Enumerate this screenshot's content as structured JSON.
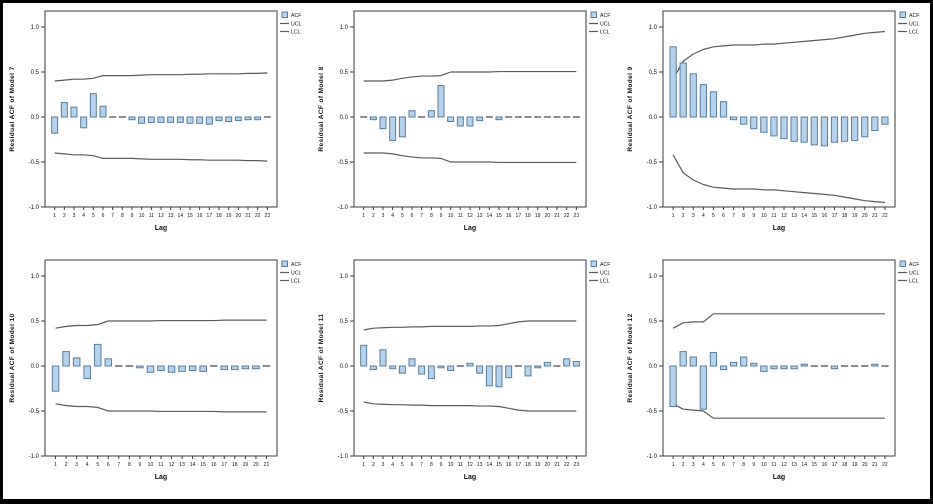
{
  "page": {
    "background": "#ffffff",
    "outer_border_color": "#000000"
  },
  "colors": {
    "bar_fill": "#b5d2ec",
    "bar_stroke": "#5a7d9c",
    "zero_dash": "#3f3f3f",
    "limit_line": "#5a5a5a",
    "frame_stroke": "#3a3a3a",
    "text": "#111111"
  },
  "legend": {
    "acf_label": "ACF",
    "ucl_label": "UCL",
    "lcl_label": "LCL"
  },
  "axis": {
    "x_label": "Lag",
    "y_tick_labels": [
      "1.0",
      "0.5",
      "0.0",
      "-0.5",
      "-1.0"
    ],
    "y_tick_values": [
      1.0,
      0.5,
      0.0,
      -0.5,
      -1.0
    ],
    "ylim": [
      -1.0,
      1.0
    ]
  },
  "chart_data": [
    {
      "type": "bar",
      "ylabel": "Residual ACF of Model 7",
      "xlabel": "Lag",
      "legend_entries": [
        "ACF",
        "UCL",
        "LCL"
      ],
      "ylim": [
        -1.0,
        1.0
      ],
      "lags": [
        1,
        2,
        3,
        4,
        5,
        6,
        7,
        8,
        9,
        10,
        11,
        12,
        13,
        14,
        15,
        16,
        17,
        18,
        19,
        20,
        21,
        22,
        23
      ],
      "acf": [
        -0.18,
        0.16,
        0.11,
        -0.12,
        0.26,
        0.12,
        -0.01,
        -0.01,
        -0.03,
        -0.07,
        -0.06,
        -0.06,
        -0.06,
        -0.06,
        -0.07,
        -0.07,
        -0.08,
        -0.04,
        -0.05,
        -0.04,
        -0.03,
        -0.03,
        -0.01
      ],
      "ucl": [
        0.4,
        0.41,
        0.42,
        0.42,
        0.43,
        0.46,
        0.46,
        0.46,
        0.46,
        0.465,
        0.47,
        0.47,
        0.47,
        0.47,
        0.475,
        0.475,
        0.48,
        0.48,
        0.48,
        0.48,
        0.485,
        0.485,
        0.49
      ],
      "lcl": [
        -0.4,
        -0.41,
        -0.42,
        -0.42,
        -0.43,
        -0.46,
        -0.46,
        -0.46,
        -0.46,
        -0.465,
        -0.47,
        -0.47,
        -0.47,
        -0.47,
        -0.475,
        -0.475,
        -0.48,
        -0.48,
        -0.48,
        -0.48,
        -0.485,
        -0.485,
        -0.49
      ]
    },
    {
      "type": "bar",
      "ylabel": "Residual ACF of Model 8",
      "xlabel": "Lag",
      "legend_entries": [
        "ACF",
        "UCL",
        "LCL"
      ],
      "ylim": [
        -1.0,
        1.0
      ],
      "lags": [
        1,
        2,
        3,
        4,
        5,
        6,
        7,
        8,
        9,
        10,
        11,
        12,
        13,
        14,
        15,
        16,
        17,
        18,
        19,
        20,
        21,
        22,
        23
      ],
      "acf": [
        -0.01,
        -0.03,
        -0.13,
        -0.26,
        -0.22,
        0.07,
        0.01,
        0.07,
        0.35,
        -0.05,
        -0.1,
        -0.1,
        -0.04,
        -0.01,
        -0.03,
        -0.01,
        -0.01,
        0.01,
        -0.01,
        -0.01,
        -0.01,
        -0.01,
        -0.01
      ],
      "ucl": [
        0.4,
        0.4,
        0.4,
        0.41,
        0.43,
        0.445,
        0.455,
        0.455,
        0.46,
        0.5,
        0.5,
        0.5,
        0.5,
        0.5,
        0.505,
        0.505,
        0.505,
        0.505,
        0.505,
        0.505,
        0.505,
        0.505,
        0.505
      ],
      "lcl": [
        -0.4,
        -0.4,
        -0.4,
        -0.41,
        -0.43,
        -0.445,
        -0.455,
        -0.455,
        -0.46,
        -0.5,
        -0.5,
        -0.5,
        -0.5,
        -0.5,
        -0.505,
        -0.505,
        -0.505,
        -0.505,
        -0.505,
        -0.505,
        -0.505,
        -0.505,
        -0.505
      ]
    },
    {
      "type": "bar",
      "ylabel": "Residual ACF of Model 9",
      "xlabel": "Lag",
      "legend_entries": [
        "ACF",
        "UCL",
        "LCL"
      ],
      "ylim": [
        -1.0,
        1.0
      ],
      "lags": [
        1,
        2,
        3,
        4,
        5,
        6,
        7,
        8,
        9,
        10,
        11,
        12,
        13,
        14,
        15,
        16,
        17,
        18,
        19,
        20,
        21,
        22
      ],
      "acf": [
        0.78,
        0.6,
        0.48,
        0.36,
        0.28,
        0.17,
        -0.03,
        -0.08,
        -0.13,
        -0.17,
        -0.21,
        -0.24,
        -0.27,
        -0.28,
        -0.31,
        -0.32,
        -0.28,
        -0.27,
        -0.26,
        -0.22,
        -0.15,
        -0.08
      ],
      "ucl": [
        0.42,
        0.62,
        0.7,
        0.75,
        0.78,
        0.79,
        0.8,
        0.8,
        0.8,
        0.81,
        0.81,
        0.82,
        0.83,
        0.84,
        0.85,
        0.86,
        0.87,
        0.89,
        0.91,
        0.93,
        0.94,
        0.95
      ],
      "lcl": [
        -0.42,
        -0.62,
        -0.7,
        -0.75,
        -0.78,
        -0.79,
        -0.8,
        -0.8,
        -0.8,
        -0.81,
        -0.81,
        -0.82,
        -0.83,
        -0.84,
        -0.85,
        -0.86,
        -0.87,
        -0.89,
        -0.91,
        -0.93,
        -0.94,
        -0.95
      ]
    },
    {
      "type": "bar",
      "ylabel": "Residual ACF of Model 10",
      "xlabel": "Lag",
      "legend_entries": [
        "ACF",
        "UCL",
        "LCL"
      ],
      "ylim": [
        -1.0,
        1.0
      ],
      "lags": [
        1,
        2,
        3,
        4,
        5,
        6,
        7,
        8,
        9,
        10,
        11,
        12,
        13,
        14,
        15,
        16,
        17,
        18,
        19,
        20,
        21
      ],
      "acf": [
        -0.28,
        0.16,
        0.09,
        -0.14,
        0.24,
        0.08,
        -0.01,
        -0.01,
        -0.02,
        -0.07,
        -0.05,
        -0.07,
        -0.06,
        -0.05,
        -0.06,
        -0.01,
        -0.04,
        -0.04,
        -0.03,
        -0.03,
        -0.01
      ],
      "ucl": [
        0.42,
        0.44,
        0.45,
        0.45,
        0.46,
        0.5,
        0.5,
        0.5,
        0.5,
        0.5,
        0.505,
        0.505,
        0.505,
        0.505,
        0.505,
        0.505,
        0.51,
        0.51,
        0.51,
        0.51,
        0.51
      ],
      "lcl": [
        -0.42,
        -0.44,
        -0.45,
        -0.45,
        -0.46,
        -0.5,
        -0.5,
        -0.5,
        -0.5,
        -0.5,
        -0.505,
        -0.505,
        -0.505,
        -0.505,
        -0.505,
        -0.505,
        -0.51,
        -0.51,
        -0.51,
        -0.51,
        -0.51
      ]
    },
    {
      "type": "bar",
      "ylabel": "Residual ACF of Model 11",
      "xlabel": "Lag",
      "legend_entries": [
        "ACF",
        "UCL",
        "LCL"
      ],
      "ylim": [
        -1.0,
        1.0
      ],
      "lags": [
        1,
        2,
        3,
        4,
        5,
        6,
        7,
        8,
        9,
        10,
        11,
        12,
        13,
        14,
        15,
        16,
        17,
        18,
        19,
        20,
        21,
        22,
        23
      ],
      "acf": [
        0.23,
        -0.04,
        0.18,
        -0.03,
        -0.08,
        0.08,
        -0.09,
        -0.14,
        -0.02,
        -0.05,
        -0.01,
        0.03,
        -0.08,
        -0.22,
        -0.23,
        -0.13,
        0.01,
        -0.11,
        -0.02,
        0.04,
        0.01,
        0.08,
        0.05
      ],
      "ucl": [
        0.4,
        0.42,
        0.425,
        0.43,
        0.43,
        0.435,
        0.435,
        0.44,
        0.44,
        0.44,
        0.44,
        0.44,
        0.445,
        0.445,
        0.45,
        0.47,
        0.49,
        0.5,
        0.5,
        0.5,
        0.5,
        0.5,
        0.5
      ],
      "lcl": [
        -0.4,
        -0.42,
        -0.425,
        -0.43,
        -0.43,
        -0.435,
        -0.435,
        -0.44,
        -0.44,
        -0.44,
        -0.44,
        -0.44,
        -0.445,
        -0.445,
        -0.45,
        -0.47,
        -0.49,
        -0.5,
        -0.5,
        -0.5,
        -0.5,
        -0.5,
        -0.5
      ]
    },
    {
      "type": "bar",
      "ylabel": "Residual ACF of Model 12",
      "xlabel": "Lag",
      "legend_entries": [
        "ACF",
        "UCL",
        "LCL"
      ],
      "ylim": [
        -1.0,
        1.0
      ],
      "lags": [
        1,
        2,
        3,
        4,
        5,
        6,
        7,
        8,
        9,
        10,
        11,
        12,
        13,
        14,
        15,
        16,
        17,
        18,
        19,
        20,
        21,
        22
      ],
      "acf": [
        -0.45,
        0.16,
        0.1,
        -0.48,
        0.15,
        -0.04,
        0.04,
        0.1,
        0.03,
        -0.06,
        -0.03,
        -0.03,
        -0.03,
        0.02,
        0.01,
        0.01,
        -0.03,
        -0.01,
        -0.01,
        -0.01,
        0.02,
        0.01
      ],
      "ucl": [
        0.42,
        0.48,
        0.49,
        0.49,
        0.58,
        0.58,
        0.58,
        0.58,
        0.58,
        0.58,
        0.58,
        0.58,
        0.58,
        0.58,
        0.58,
        0.58,
        0.58,
        0.58,
        0.58,
        0.58,
        0.58,
        0.58
      ],
      "lcl": [
        -0.42,
        -0.48,
        -0.49,
        -0.5,
        -0.58,
        -0.58,
        -0.58,
        -0.58,
        -0.58,
        -0.58,
        -0.58,
        -0.58,
        -0.58,
        -0.58,
        -0.58,
        -0.58,
        -0.58,
        -0.58,
        -0.58,
        -0.58,
        -0.58,
        -0.58
      ]
    }
  ]
}
